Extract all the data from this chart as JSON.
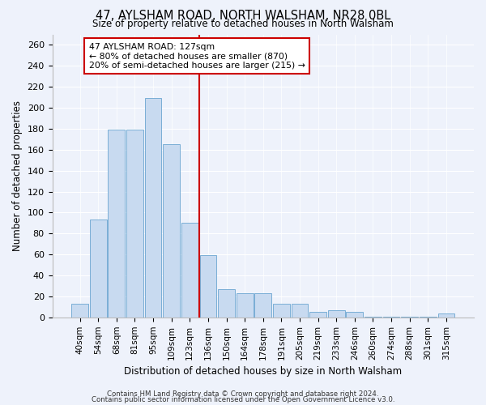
{
  "title": "47, AYLSHAM ROAD, NORTH WALSHAM, NR28 0BL",
  "subtitle": "Size of property relative to detached houses in North Walsham",
  "xlabel": "Distribution of detached houses by size in North Walsham",
  "ylabel": "Number of detached properties",
  "bar_color": "#c8daf0",
  "bar_edge_color": "#7aaed6",
  "background_color": "#eef2fb",
  "grid_color": "#ffffff",
  "categories": [
    "40sqm",
    "54sqm",
    "68sqm",
    "81sqm",
    "95sqm",
    "109sqm",
    "123sqm",
    "136sqm",
    "150sqm",
    "164sqm",
    "178sqm",
    "191sqm",
    "205sqm",
    "219sqm",
    "233sqm",
    "246sqm",
    "260sqm",
    "274sqm",
    "288sqm",
    "301sqm",
    "315sqm"
  ],
  "values": [
    13,
    93,
    179,
    179,
    209,
    165,
    90,
    59,
    27,
    23,
    23,
    13,
    13,
    5,
    7,
    5,
    1,
    1,
    1,
    1,
    4
  ],
  "ylim": [
    0,
    270
  ],
  "yticks": [
    0,
    20,
    40,
    60,
    80,
    100,
    120,
    140,
    160,
    180,
    200,
    220,
    240,
    260
  ],
  "vline_x_index": 6.5,
  "vline_color": "#cc0000",
  "annotation_title": "47 AYLSHAM ROAD: 127sqm",
  "annotation_line1": "← 80% of detached houses are smaller (870)",
  "annotation_line2": "20% of semi-detached houses are larger (215) →",
  "annotation_box_color": "#ffffff",
  "annotation_box_edgecolor": "#cc0000",
  "footer1": "Contains HM Land Registry data © Crown copyright and database right 2024.",
  "footer2": "Contains public sector information licensed under the Open Government Licence v3.0."
}
